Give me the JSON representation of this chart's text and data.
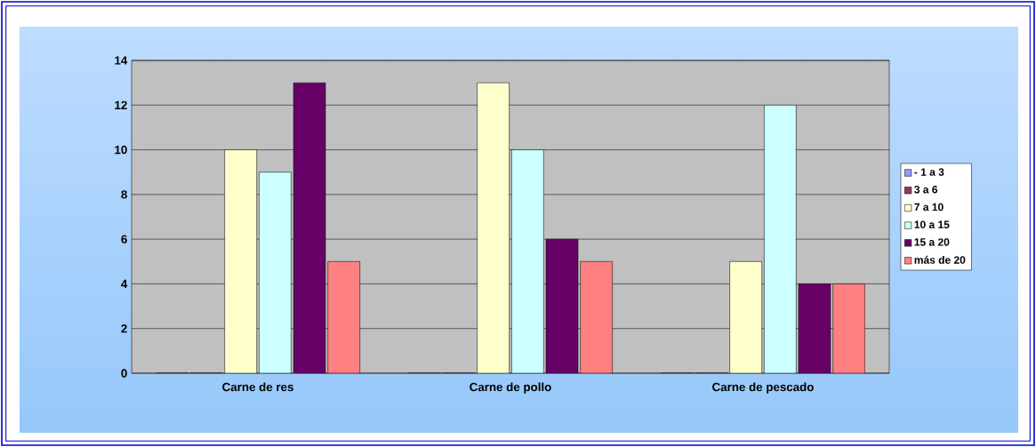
{
  "chart_data": {
    "type": "bar",
    "categories": [
      "Carne de res",
      "Carne de pollo",
      "Carne de pescado"
    ],
    "series": [
      {
        "name": "- 1 a 3",
        "color": "#9999ff",
        "values": [
          0,
          0,
          0
        ]
      },
      {
        "name": "3 a 6",
        "color": "#993366",
        "values": [
          0,
          0,
          0
        ]
      },
      {
        "name": "7 a 10",
        "color": "#ffffcc",
        "values": [
          10,
          13,
          5
        ]
      },
      {
        "name": "10 a 15",
        "color": "#ccffff",
        "values": [
          9,
          10,
          12
        ]
      },
      {
        "name": "15 a 20",
        "color": "#660066",
        "values": [
          13,
          6,
          4
        ]
      },
      {
        "name": "más de 20",
        "color": "#ff8080",
        "values": [
          5,
          5,
          4
        ]
      }
    ],
    "ylim": [
      0,
      14
    ],
    "yticks": [
      0,
      2,
      4,
      6,
      8,
      10,
      12,
      14
    ],
    "grid": "y",
    "legend": "right"
  }
}
